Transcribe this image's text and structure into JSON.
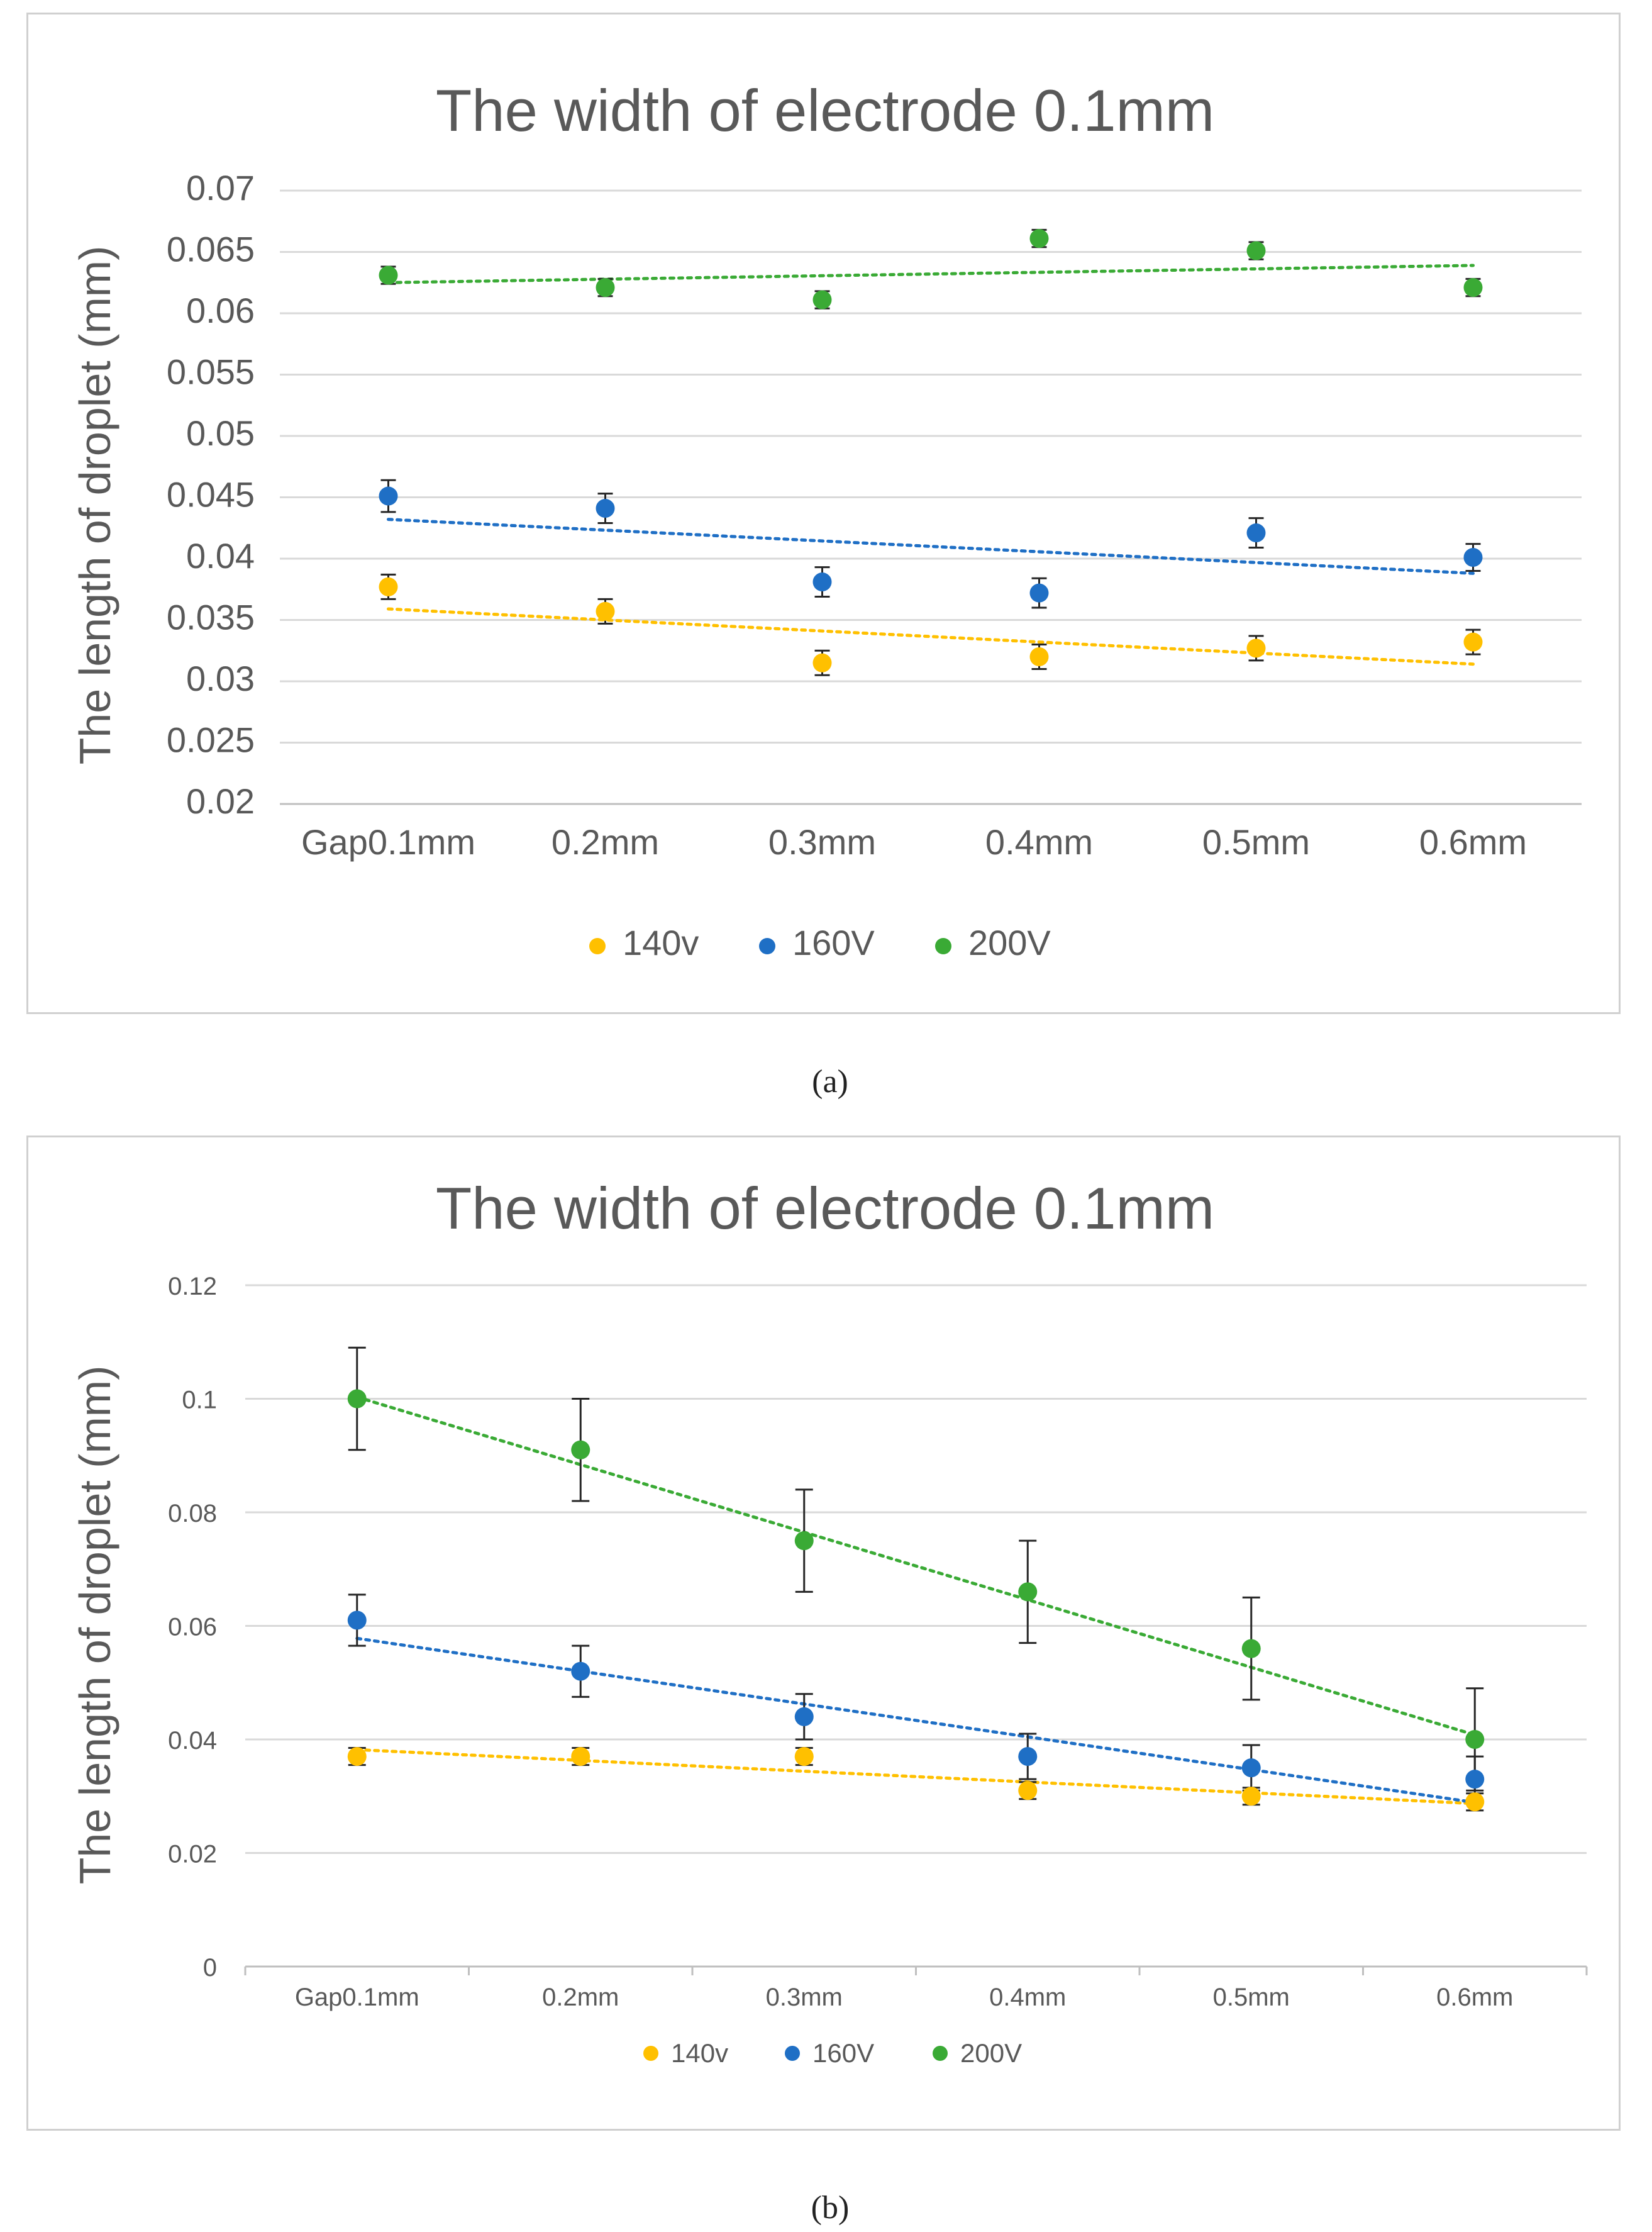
{
  "charts": [
    {
      "id": "a",
      "caption": "(a)",
      "chart_data": {
        "type": "scatter",
        "title": "The width of electrode 0.1mm",
        "ylabel": "The length of droplet (mm)",
        "xlabel": "",
        "categories": [
          "Gap0.1mm",
          "0.2mm",
          "0.3mm",
          "0.4mm",
          "0.5mm",
          "0.6mm"
        ],
        "ylim": [
          0.02,
          0.07
        ],
        "yticks": [
          0.02,
          0.025,
          0.03,
          0.035,
          0.04,
          0.045,
          0.05,
          0.055,
          0.06,
          0.065,
          0.07
        ],
        "ytick_labels": [
          "0.02",
          "0.025",
          "0.03",
          "0.035",
          "0.04",
          "0.045",
          "0.05",
          "0.055",
          "0.06",
          "0.065",
          "0.07"
        ],
        "grid": true,
        "legend_position": "bottom",
        "series": [
          {
            "name": "140v",
            "color": "#FFC000",
            "values": [
              0.0377,
              0.0357,
              0.0315,
              0.032,
              0.0327,
              0.0332
            ],
            "errors": [
              0.001,
              0.001,
              0.001,
              0.001,
              0.001,
              0.001
            ],
            "trend": [
              0.0359,
              0.0349,
              0.034,
              0.0331,
              0.0322,
              0.0314
            ]
          },
          {
            "name": "160V",
            "color": "#1F6FC5",
            "values": [
              0.0451,
              0.0441,
              0.0381,
              0.0372,
              0.0421,
              0.0401
            ],
            "errors": [
              0.0013,
              0.0012,
              0.0012,
              0.0012,
              0.0012,
              0.0011
            ],
            "trend": [
              0.0432,
              0.0423,
              0.0414,
              0.0406,
              0.0397,
              0.0388
            ]
          },
          {
            "name": "200V",
            "color": "#3AAA35",
            "values": [
              0.0631,
              0.0621,
              0.0611,
              0.0661,
              0.0651,
              0.0621
            ],
            "errors": [
              0.0007,
              0.0007,
              0.0007,
              0.0007,
              0.0007,
              0.0007
            ],
            "trend": [
              0.0625,
              0.0628,
              0.063,
              0.0633,
              0.0636,
              0.0639
            ]
          }
        ]
      }
    },
    {
      "id": "b",
      "caption": "(b)",
      "chart_data": {
        "type": "scatter",
        "title": "The width of electrode 0.1mm",
        "ylabel": "The length of droplet (mm)",
        "xlabel": "",
        "categories": [
          "Gap0.1mm",
          "0.2mm",
          "0.3mm",
          "0.4mm",
          "0.5mm",
          "0.6mm"
        ],
        "ylim": [
          0,
          0.12
        ],
        "yticks": [
          0,
          0.02,
          0.04,
          0.06,
          0.08,
          0.1,
          0.12
        ],
        "ytick_labels": [
          "0",
          "0.02",
          "0.04",
          "0.06",
          "0.08",
          "0.1",
          "0.12"
        ],
        "grid": true,
        "legend_position": "bottom",
        "series": [
          {
            "name": "140v",
            "color": "#FFC000",
            "values": [
              0.037,
              0.037,
              0.037,
              0.031,
              0.03,
              0.029
            ],
            "errors": [
              0.0015,
              0.0015,
              0.0015,
              0.0015,
              0.0015,
              0.0015
            ],
            "trend": [
              0.0382,
              0.0363,
              0.0344,
              0.0325,
              0.0306,
              0.0287
            ]
          },
          {
            "name": "160V",
            "color": "#1F6FC5",
            "values": [
              0.061,
              0.052,
              0.044,
              0.037,
              0.035,
              0.033
            ],
            "errors": [
              0.0045,
              0.0045,
              0.004,
              0.004,
              0.004,
              0.004
            ],
            "trend": [
              0.0578,
              0.052,
              0.0463,
              0.0405,
              0.0347,
              0.0289
            ]
          },
          {
            "name": "200V",
            "color": "#3AAA35",
            "values": [
              0.1,
              0.091,
              0.075,
              0.066,
              0.056,
              0.04
            ],
            "errors": [
              0.009,
              0.009,
              0.009,
              0.009,
              0.009,
              0.009
            ],
            "trend": [
              0.1003,
              0.0884,
              0.0765,
              0.0646,
              0.0527,
              0.0408
            ]
          }
        ]
      }
    }
  ]
}
